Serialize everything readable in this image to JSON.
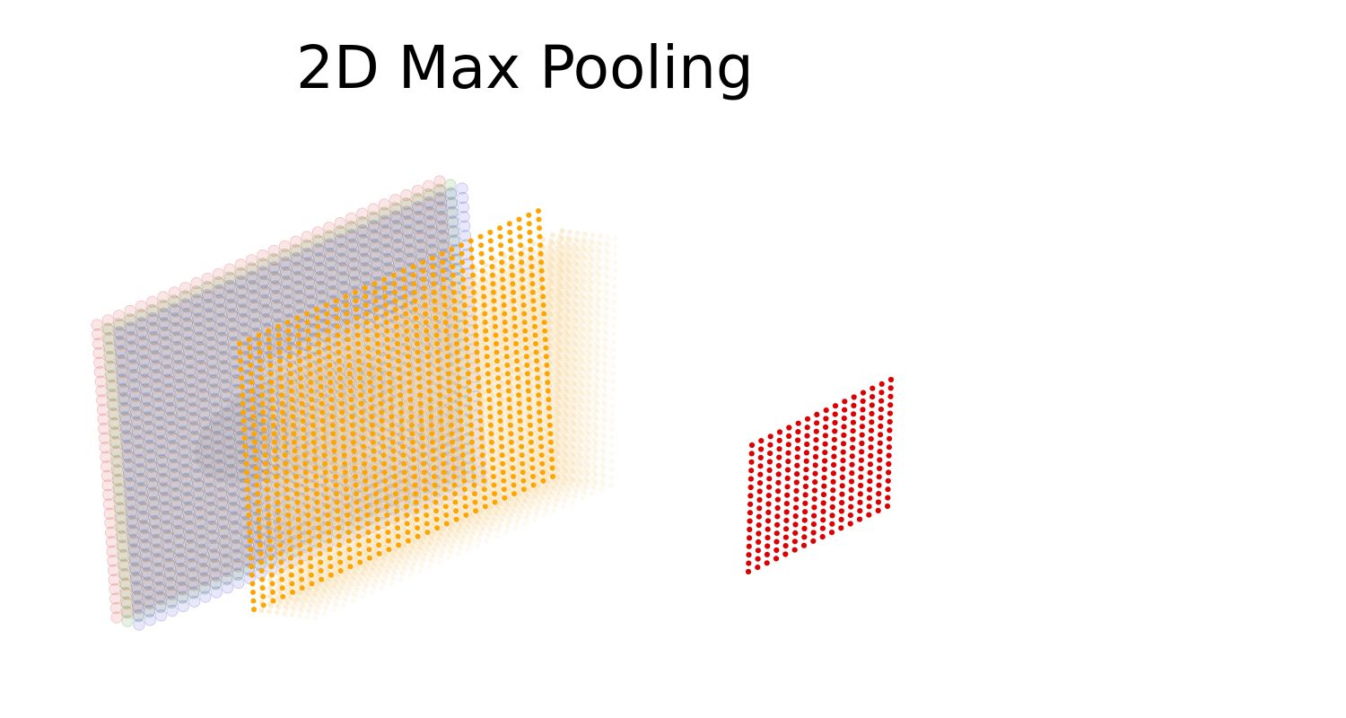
{
  "title": "2D Max Pooling",
  "diagram": {
    "input_channels": {
      "grid": {
        "rows": 32,
        "cols": 32
      },
      "colors": [
        "#e06666",
        "#6aa84f",
        "#6d6de0"
      ]
    },
    "feature_maps": {
      "grid": {
        "rows": 32,
        "cols": 32
      },
      "color": "#ffa500",
      "ghost_color": "#f8dcaa"
    },
    "pooled_output": {
      "grid": {
        "rows": 16,
        "cols": 16
      },
      "color": "#dd0000"
    }
  }
}
